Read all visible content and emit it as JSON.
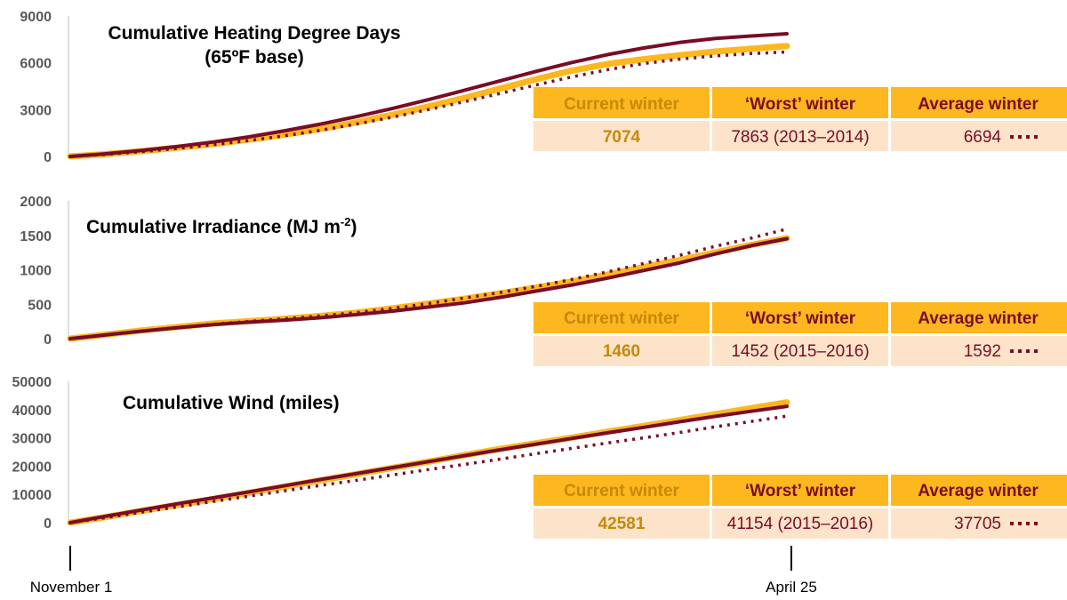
{
  "colors": {
    "current": "#fdb71f",
    "worst": "#7a0c26",
    "average": "#7a0c26",
    "header_bg": "#fdb71f",
    "row_bg": "#fde3c9",
    "current_value_text": "#c68a08",
    "worst_header_text": "#7a0c26",
    "axis_text": "#595959"
  },
  "x_axis": {
    "start_label": "November 1",
    "end_label": "April 25"
  },
  "table_headers": {
    "current": "Current winter",
    "worst": "‘Worst’ winter",
    "average": "Average winter"
  },
  "chart_data": [
    {
      "type": "line",
      "title": "Cumulative Heating Degree Days",
      "subtitle": "(65ºF base)",
      "ylim": [
        0,
        9000
      ],
      "yticks": [
        0,
        3000,
        6000,
        9000
      ],
      "x": [
        0,
        0.05,
        0.1,
        0.15,
        0.2,
        0.25,
        0.3,
        0.35,
        0.4,
        0.45,
        0.5,
        0.55,
        0.6,
        0.65,
        0.7,
        0.75,
        0.8,
        0.85,
        0.9,
        0.95,
        1.0
      ],
      "series": [
        {
          "key": "current",
          "style": "solid-thick",
          "values": [
            0,
            150,
            340,
            560,
            800,
            1090,
            1400,
            1760,
            2200,
            2680,
            3200,
            3750,
            4350,
            4950,
            5500,
            5930,
            6230,
            6480,
            6720,
            6900,
            7074
          ]
        },
        {
          "key": "worst",
          "style": "solid",
          "values": [
            0,
            170,
            390,
            640,
            930,
            1260,
            1650,
            2080,
            2560,
            3080,
            3640,
            4240,
            4850,
            5450,
            6020,
            6530,
            6950,
            7300,
            7560,
            7720,
            7863
          ]
        },
        {
          "key": "average",
          "style": "dotted",
          "values": [
            0,
            130,
            310,
            520,
            750,
            1020,
            1330,
            1680,
            2080,
            2520,
            3000,
            3510,
            4040,
            4580,
            5100,
            5560,
            5950,
            6230,
            6440,
            6590,
            6694
          ]
        }
      ],
      "table": {
        "current_value": "7074",
        "worst_value": "7863 (2013–2014)",
        "average_value": "6694"
      }
    },
    {
      "type": "line",
      "title": "Cumulative Irradiance (MJ m",
      "title_superscript": "-2",
      "title_end": ")",
      "ylim": [
        0,
        2000
      ],
      "yticks": [
        0,
        500,
        1000,
        1500,
        2000
      ],
      "x": [
        0,
        0.05,
        0.1,
        0.15,
        0.2,
        0.25,
        0.3,
        0.35,
        0.4,
        0.45,
        0.5,
        0.55,
        0.6,
        0.65,
        0.7,
        0.75,
        0.8,
        0.85,
        0.9,
        0.95,
        1.0
      ],
      "series": [
        {
          "key": "current",
          "style": "solid-thick",
          "values": [
            0,
            60,
            120,
            170,
            220,
            255,
            290,
            330,
            380,
            440,
            510,
            580,
            660,
            740,
            830,
            930,
            1040,
            1140,
            1250,
            1360,
            1460
          ]
        },
        {
          "key": "worst",
          "style": "solid",
          "values": [
            0,
            55,
            110,
            160,
            205,
            240,
            270,
            305,
            350,
            400,
            460,
            520,
            600,
            690,
            780,
            880,
            990,
            1100,
            1230,
            1350,
            1452
          ]
        },
        {
          "key": "average",
          "style": "dotted",
          "values": [
            0,
            55,
            110,
            160,
            210,
            250,
            290,
            330,
            380,
            440,
            510,
            590,
            670,
            760,
            860,
            970,
            1090,
            1210,
            1340,
            1460,
            1592
          ]
        }
      ],
      "table": {
        "current_value": "1460",
        "worst_value": "1452 (2015–2016)",
        "average_value": "1592"
      }
    },
    {
      "type": "line",
      "title": "Cumulative Wind (miles)",
      "ylim": [
        0,
        50000
      ],
      "yticks": [
        0,
        10000,
        20000,
        30000,
        40000,
        50000
      ],
      "x": [
        0,
        0.05,
        0.1,
        0.15,
        0.2,
        0.25,
        0.3,
        0.35,
        0.4,
        0.45,
        0.5,
        0.55,
        0.6,
        0.65,
        0.7,
        0.75,
        0.8,
        0.85,
        0.9,
        0.95,
        1.0
      ],
      "series": [
        {
          "key": "current",
          "style": "solid-thick",
          "values": [
            0,
            2000,
            4200,
            6300,
            8400,
            10600,
            12800,
            15000,
            17200,
            19400,
            21600,
            23900,
            26100,
            28100,
            30100,
            32200,
            34200,
            36300,
            38400,
            40500,
            42581
          ]
        },
        {
          "key": "worst",
          "style": "solid",
          "values": [
            0,
            2300,
            4500,
            6700,
            8800,
            10900,
            13100,
            15300,
            17400,
            19500,
            21600,
            23700,
            25800,
            27800,
            29800,
            31800,
            33700,
            35700,
            37600,
            39400,
            41154
          ]
        },
        {
          "key": "average",
          "style": "dotted",
          "values": [
            0,
            1800,
            3700,
            5600,
            7500,
            9400,
            11300,
            13200,
            15000,
            16900,
            18800,
            20600,
            22500,
            24400,
            26300,
            28200,
            30000,
            31900,
            33900,
            35800,
            37705
          ]
        }
      ],
      "table": {
        "current_value": "42581",
        "worst_value": "41154 (2015–2016)",
        "average_value": "37705"
      }
    }
  ]
}
